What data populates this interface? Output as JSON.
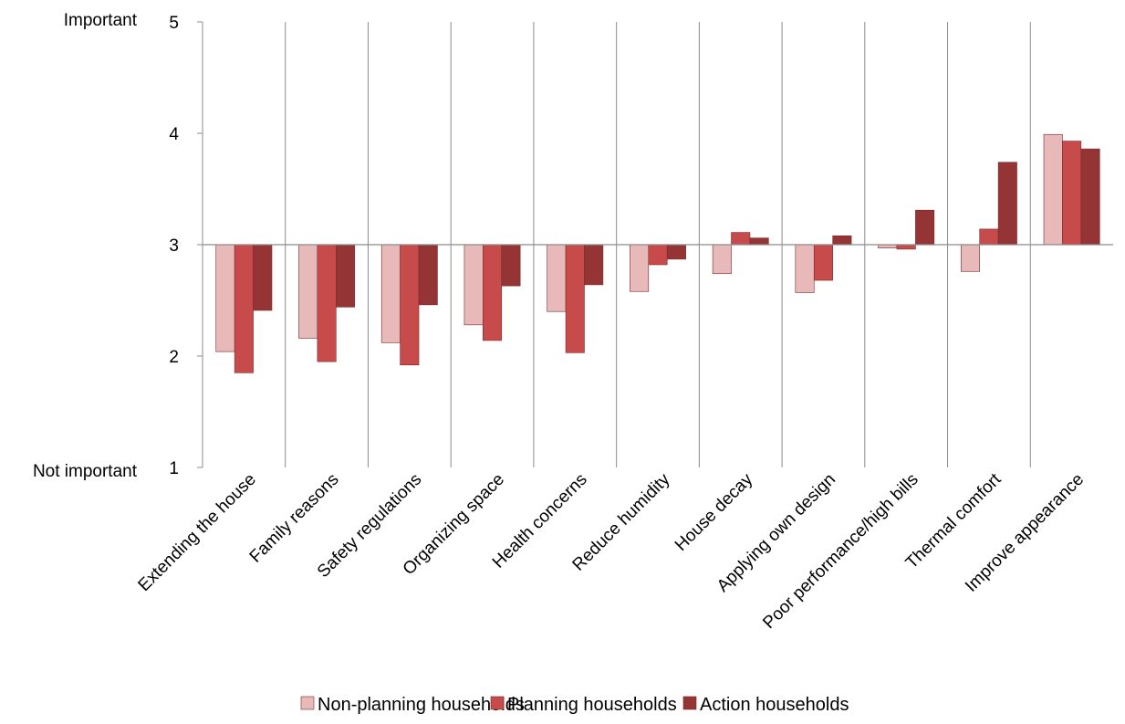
{
  "chart_data": {
    "type": "bar",
    "title": "",
    "xlabel": "",
    "ylabel": "",
    "ylim": [
      1,
      5
    ],
    "baseline": 3,
    "yticks": [
      1,
      2,
      3,
      4,
      5
    ],
    "y_top_label": "Important",
    "y_bottom_label": "Not important",
    "categories": [
      "Extending the house",
      "Family reasons",
      "Safety regulations",
      "Organizing space",
      "Health concerns",
      "Reduce humidity",
      "House decay",
      "Applying own design",
      "Poor performance/high bills",
      "Thermal comfort",
      "Improve appearance"
    ],
    "series": [
      {
        "name": "Non-planning households",
        "color": "#e8b9b9",
        "values": [
          2.04,
          2.16,
          2.12,
          2.28,
          2.4,
          2.58,
          2.74,
          2.57,
          2.97,
          2.76,
          3.99
        ]
      },
      {
        "name": "Planning households",
        "color": "#c84b4b",
        "values": [
          1.85,
          1.95,
          1.92,
          2.14,
          2.03,
          2.82,
          3.11,
          2.68,
          2.96,
          3.14,
          3.93
        ]
      },
      {
        "name": "Action households",
        "color": "#943434",
        "values": [
          2.41,
          2.44,
          2.46,
          2.63,
          2.64,
          2.87,
          3.06,
          3.08,
          3.31,
          3.74,
          3.86
        ]
      }
    ],
    "grid": "vertical separators between categories",
    "legend": "bottom"
  }
}
